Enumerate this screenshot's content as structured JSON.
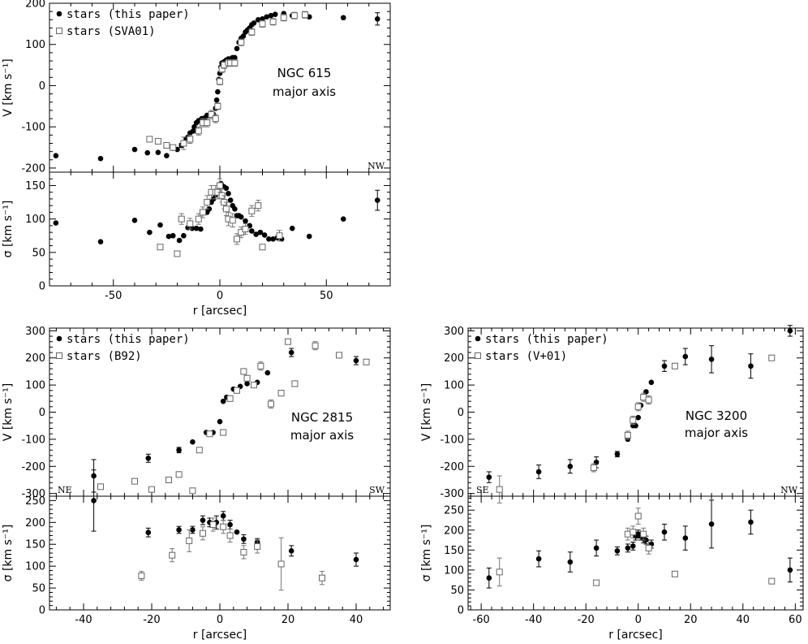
{
  "chart_data": [
    {
      "type": "scatter",
      "galaxy": "NGC 615",
      "annotation": [
        "NGC 615",
        "major axis"
      ],
      "corner_left": "",
      "corner_right": "NW",
      "xlabel": "r [arcsec]",
      "xlim": [
        -80,
        80
      ],
      "xticks": [
        -50,
        0,
        50
      ],
      "legend": [
        "stars (this paper)",
        "stars (SVA01)"
      ],
      "legend_position": "top-left",
      "velocity": {
        "ylabel": "V [km s⁻¹]",
        "ylim": [
          -210,
          200
        ],
        "yticks": [
          -200,
          -100,
          0,
          100,
          200
        ],
        "series": [
          {
            "name": "stars (this paper)",
            "marker": "filled-circle",
            "x": [
              -77,
              -56,
              -40,
              -34,
              -29,
              -25,
              -22,
              -20,
              -18,
              -16,
              -15,
              -14,
              -12.5,
              -12,
              -11,
              -10,
              -9,
              -8.5,
              -7,
              -6,
              -5,
              -4,
              -3,
              -2,
              -1.5,
              -1,
              -0.5,
              0,
              0.5,
              1,
              1.5,
              2,
              3,
              4,
              5,
              6,
              7,
              8,
              9,
              10,
              11,
              12,
              13,
              14,
              15,
              16,
              18,
              20,
              22,
              24,
              26,
              30,
              34,
              42,
              58,
              74
            ],
            "y": [
              -170,
              -177,
              -155,
              -163,
              -162,
              -170,
              -152,
              -155,
              -145,
              -130,
              -125,
              -115,
              -110,
              -100,
              -90,
              -85,
              -85,
              -80,
              -78,
              -72,
              -72,
              -68,
              -70,
              -55,
              -35,
              -15,
              15,
              30,
              45,
              55,
              55,
              58,
              62,
              65,
              65,
              68,
              68,
              90,
              105,
              115,
              120,
              130,
              135,
              140,
              148,
              152,
              160,
              162,
              167,
              170,
              173,
              175,
              170,
              167,
              165,
              162
            ],
            "yerr": [
              0,
              0,
              0,
              0,
              0,
              0,
              0,
              0,
              5,
              5,
              0,
              0,
              0,
              0,
              0,
              0,
              0,
              0,
              0,
              0,
              0,
              0,
              0,
              0,
              0,
              0,
              0,
              0,
              0,
              0,
              0,
              0,
              0,
              0,
              0,
              0,
              0,
              0,
              0,
              0,
              0,
              0,
              0,
              0,
              0,
              0,
              0,
              0,
              0,
              0,
              0,
              0,
              0,
              0,
              0,
              15
            ]
          },
          {
            "name": "stars (SVA01)",
            "marker": "open-square",
            "x": [
              -33,
              -29,
              -25,
              -22,
              -17,
              -14,
              -10,
              -8,
              -6,
              -4,
              -2,
              -1,
              0,
              1,
              2,
              4,
              5,
              7,
              10,
              15,
              20,
              25,
              30,
              35,
              40
            ],
            "y": [
              -130,
              -135,
              -145,
              -150,
              -140,
              -130,
              -110,
              -90,
              -90,
              -70,
              -80,
              -50,
              10,
              40,
              50,
              55,
              55,
              55,
              105,
              130,
              150,
              155,
              165,
              170,
              172
            ],
            "yerr": [
              0,
              0,
              0,
              0,
              15,
              10,
              10,
              10,
              10,
              10,
              10,
              8,
              8,
              8,
              8,
              8,
              8,
              8,
              8,
              8,
              8,
              8,
              8,
              8,
              8
            ]
          }
        ]
      },
      "dispersion": {
        "ylabel": "σ [km s⁻¹]",
        "ylim": [
          0,
          170
        ],
        "yticks": [
          0,
          50,
          100,
          150
        ],
        "series": [
          {
            "name": "stars (this paper)",
            "marker": "filled-circle",
            "x": [
              -77,
              -56,
              -40,
              -33,
              -28,
              -24,
              -22,
              -19,
              -17,
              -15,
              -13,
              -11,
              -9,
              -6,
              -5,
              -4,
              -3,
              -2,
              -1,
              0,
              0.5,
              1,
              2,
              3,
              4,
              5,
              6,
              7,
              8,
              9,
              10,
              12,
              14,
              15,
              17,
              19,
              21,
              23,
              25,
              27,
              29,
              34,
              42,
              58,
              74
            ],
            "y": [
              94,
              66,
              98,
              80,
              91,
              74,
              75,
              68,
              75,
              87,
              86,
              86,
              85,
              110,
              115,
              125,
              130,
              136,
              140,
              148,
              153,
              150,
              148,
              146,
              138,
              128,
              120,
              115,
              105,
              105,
              103,
              97,
              90,
              82,
              77,
              80,
              76,
              70,
              70,
              72,
              70,
              86,
              74,
              100,
              128
            ],
            "yerr": [
              0,
              0,
              0,
              0,
              0,
              0,
              0,
              0,
              0,
              0,
              0,
              0,
              0,
              0,
              0,
              0,
              0,
              0,
              0,
              0,
              0,
              0,
              0,
              0,
              0,
              0,
              0,
              0,
              0,
              0,
              0,
              0,
              0,
              0,
              0,
              0,
              0,
              0,
              0,
              0,
              0,
              0,
              0,
              0,
              15
            ]
          },
          {
            "name": "stars (SVA01)",
            "marker": "open-square",
            "x": [
              -28,
              -20,
              -18,
              -14,
              -10,
              -8,
              -6,
              -4,
              -2,
              -1,
              0,
              1,
              2,
              3,
              4,
              6,
              8,
              10,
              12,
              15,
              18,
              20,
              28
            ],
            "y": [
              58,
              48,
              100,
              93,
              100,
              110,
              125,
              140,
              140,
              140,
              150,
              135,
              125,
              115,
              100,
              98,
              70,
              80,
              85,
              112,
              120,
              58,
              75
            ],
            "yerr": [
              0,
              0,
              8,
              8,
              8,
              8,
              10,
              10,
              10,
              10,
              10,
              10,
              10,
              10,
              10,
              10,
              8,
              8,
              8,
              8,
              8,
              0,
              8
            ]
          }
        ]
      }
    },
    {
      "type": "scatter",
      "galaxy": "NGC 2815",
      "annotation": [
        "NGC 2815",
        "major axis"
      ],
      "corner_left": "NE",
      "corner_right": "SW",
      "xlabel": "r [arcsec]",
      "xlim": [
        -50,
        50
      ],
      "xticks": [
        -40,
        -20,
        0,
        20,
        40
      ],
      "legend": [
        "stars (this paper)",
        "stars (B92)"
      ],
      "legend_position": "top-left",
      "velocity": {
        "ylabel": "V [km s⁻¹]",
        "ylim": [
          -310,
          310
        ],
        "yticks": [
          -300,
          -200,
          -100,
          0,
          100,
          200,
          300
        ],
        "series": [
          {
            "name": "stars (this paper)",
            "marker": "filled-circle",
            "x": [
              -37,
              -21,
              -12,
              -8,
              -4,
              -2,
              0,
              1,
              2,
              4,
              6,
              8,
              11,
              14,
              21,
              40
            ],
            "y": [
              -235,
              -170,
              -140,
              -110,
              -75,
              -75,
              -35,
              40,
              55,
              85,
              95,
              105,
              110,
              145,
              220,
              190
            ],
            "yerr": [
              60,
              15,
              10,
              0,
              0,
              0,
              0,
              0,
              0,
              0,
              0,
              0,
              0,
              0,
              15,
              15
            ]
          },
          {
            "name": "stars (B92)",
            "marker": "open-square",
            "x": [
              -35,
              -25,
              -20,
              -15,
              -12,
              -8,
              -6,
              -3,
              1,
              3,
              5,
              7,
              8,
              10,
              12,
              15,
              18,
              20,
              22,
              28,
              35,
              43
            ],
            "y": [
              -275,
              -255,
              -285,
              -250,
              -230,
              -290,
              -140,
              -80,
              -75,
              50,
              80,
              150,
              125,
              100,
              170,
              30,
              70,
              260,
              105,
              245,
              210,
              185
            ],
            "yerr": [
              0,
              0,
              0,
              0,
              0,
              0,
              0,
              0,
              10,
              10,
              10,
              10,
              10,
              10,
              15,
              15,
              10,
              10,
              10,
              15,
              10,
              10
            ]
          }
        ]
      },
      "dispersion": {
        "ylabel": "σ [km s⁻¹]",
        "ylim": [
          0,
          260
        ],
        "yticks": [
          0,
          50,
          100,
          150,
          200,
          250
        ],
        "series": [
          {
            "name": "stars (this paper)",
            "marker": "filled-circle",
            "x": [
              -37,
              -21,
              -12,
              -8,
              -5,
              -3,
              -1,
              1,
              3,
              5,
              7,
              11,
              21,
              40
            ],
            "y": [
              250,
              177,
              183,
              183,
              205,
              200,
              200,
              215,
              195,
              178,
              162,
              155,
              135,
              115
            ],
            "yerr": [
              70,
              10,
              8,
              8,
              10,
              10,
              15,
              10,
              10,
              0,
              10,
              8,
              12,
              15
            ]
          },
          {
            "name": "stars (B92)",
            "marker": "open-square",
            "x": [
              -23,
              -14,
              -9,
              -5,
              -2,
              1,
              3,
              7,
              11,
              18,
              30
            ],
            "y": [
              78,
              125,
              158,
              175,
              195,
              190,
              170,
              132,
              145,
              105,
              73
            ],
            "yerr": [
              10,
              15,
              25,
              15,
              15,
              15,
              15,
              15,
              15,
              60,
              15
            ]
          }
        ]
      }
    },
    {
      "type": "scatter",
      "galaxy": "NGC 3200",
      "annotation": [
        "NGC 3200",
        "major axis"
      ],
      "corner_left": "SE",
      "corner_right": "NW",
      "xlabel": "r [arcsec]",
      "xlim": [
        -65,
        63
      ],
      "xticks": [
        -60,
        -40,
        -20,
        0,
        20,
        40,
        60
      ],
      "legend": [
        "stars (this paper)",
        "stars (V+01)"
      ],
      "legend_position": "top-left",
      "velocity": {
        "ylabel": "V [km s⁻¹]",
        "ylim": [
          -310,
          310
        ],
        "yticks": [
          -300,
          -200,
          -100,
          0,
          100,
          200,
          300
        ],
        "series": [
          {
            "name": "stars (this paper)",
            "marker": "filled-circle",
            "x": [
              -57,
              -38,
              -26,
              -16,
              -8,
              -4,
              -2,
              -1,
              0,
              1,
              2,
              3,
              5,
              10,
              18,
              28,
              43,
              58
            ],
            "y": [
              -240,
              -220,
              -200,
              -185,
              -155,
              -100,
              -50,
              -50,
              -20,
              25,
              55,
              75,
              110,
              170,
              205,
              195,
              170,
              300
            ],
            "yerr": [
              20,
              25,
              25,
              20,
              10,
              0,
              0,
              0,
              0,
              0,
              0,
              0,
              0,
              20,
              30,
              50,
              45,
              20
            ]
          },
          {
            "name": "stars (V+01)",
            "marker": "open-square",
            "x": [
              -53,
              -17,
              -4,
              -2,
              0,
              2,
              4,
              14,
              51
            ],
            "y": [
              -285,
              -205,
              -85,
              -30,
              20,
              55,
              45,
              170,
              200
            ],
            "yerr": [
              50,
              15,
              15,
              15,
              15,
              15,
              15,
              10,
              0
            ]
          }
        ]
      },
      "dispersion": {
        "ylabel": "σ [km s⁻¹]",
        "ylim": [
          0,
          285
        ],
        "yticks": [
          0,
          50,
          100,
          150,
          200,
          250
        ],
        "series": [
          {
            "name": "stars (this paper)",
            "marker": "filled-circle",
            "x": [
              -57,
              -38,
              -26,
              -16,
              -8,
              -4,
              -2,
              -1,
              0,
              1,
              2,
              3,
              5,
              10,
              18,
              28,
              43,
              58
            ],
            "y": [
              80,
              128,
              120,
              155,
              148,
              155,
              160,
              185,
              190,
              185,
              178,
              175,
              165,
              195,
              180,
              215,
              220,
              100
            ],
            "yerr": [
              25,
              20,
              25,
              20,
              10,
              10,
              10,
              10,
              10,
              10,
              10,
              10,
              10,
              20,
              30,
              60,
              30,
              30
            ]
          },
          {
            "name": "stars (V+01)",
            "marker": "open-square",
            "x": [
              -53,
              -16,
              -4,
              -2,
              0,
              2,
              4,
              14,
              51
            ],
            "y": [
              95,
              68,
              190,
              195,
              235,
              190,
              155,
              90,
              72
            ],
            "yerr": [
              35,
              0,
              15,
              15,
              20,
              15,
              15,
              0,
              0
            ]
          }
        ]
      }
    }
  ]
}
